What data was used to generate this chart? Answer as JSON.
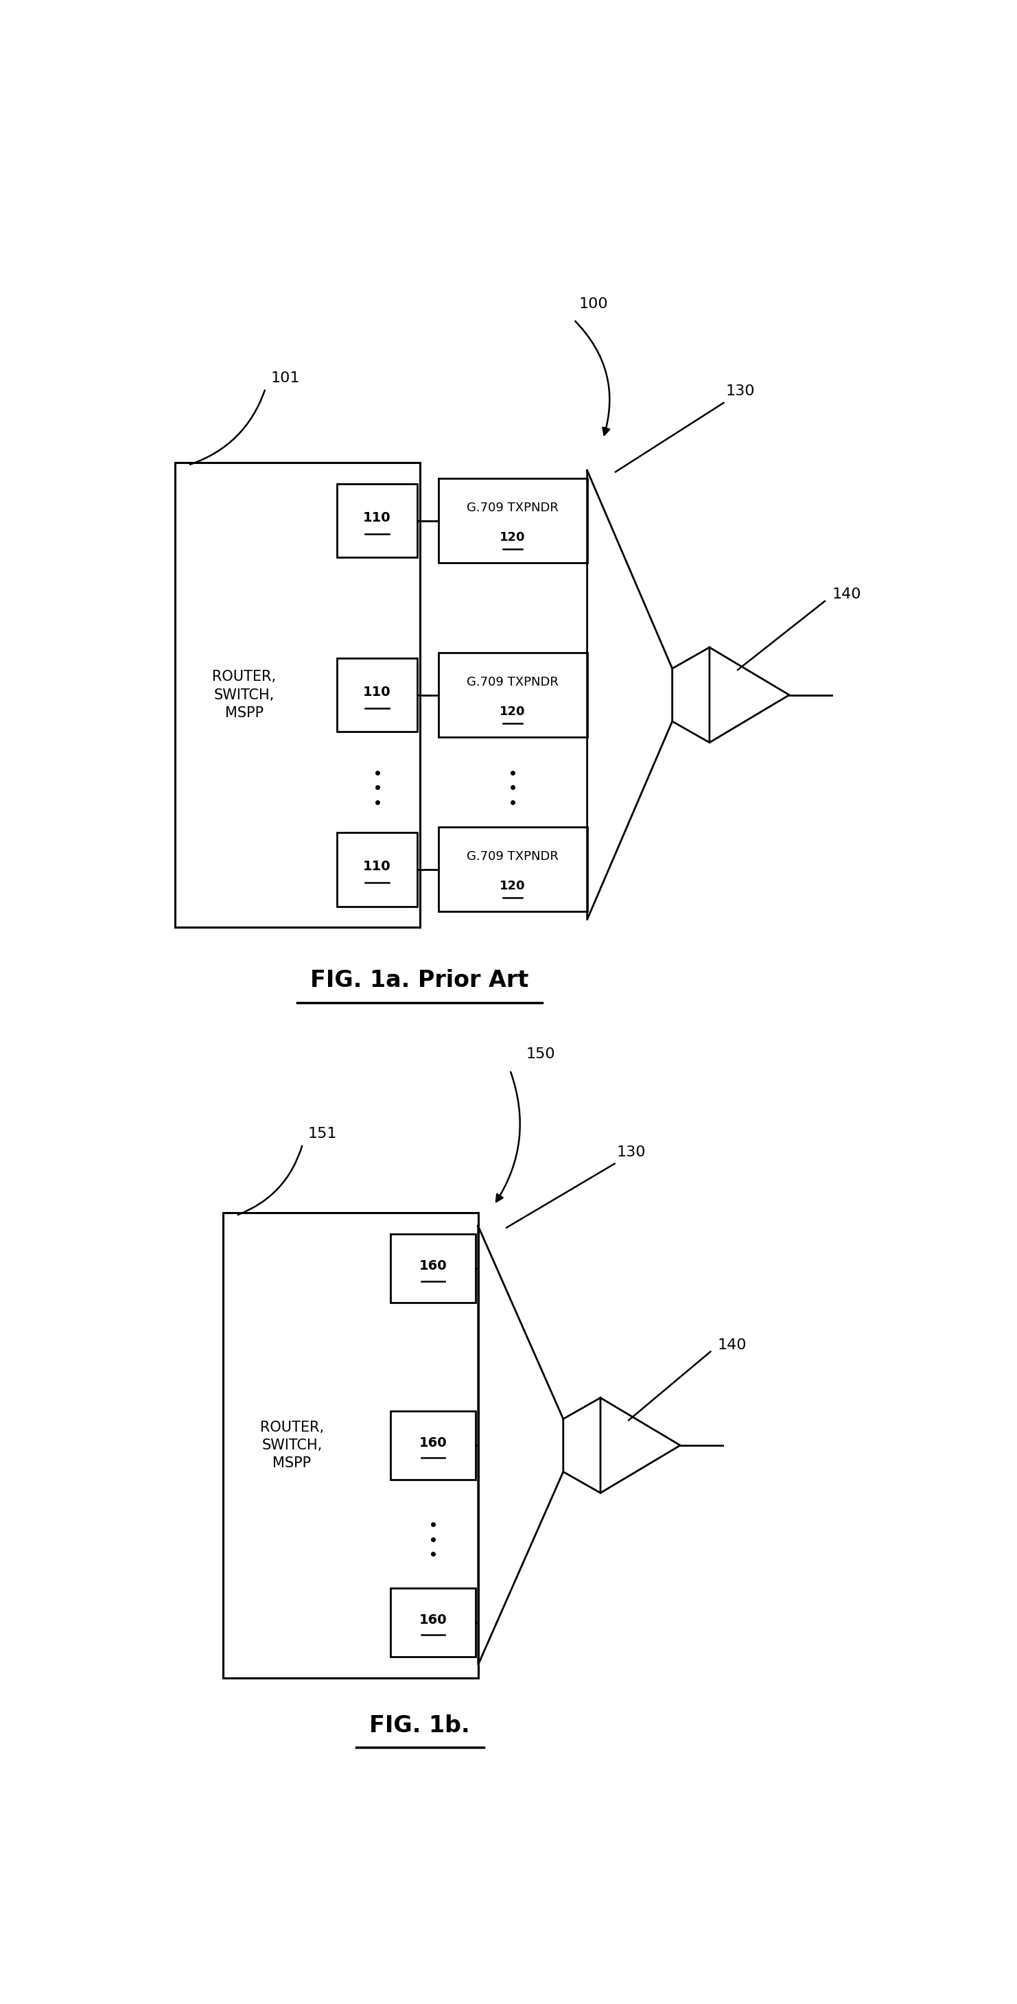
{
  "bg_color": "#ffffff",
  "fig_width": 14.82,
  "fig_height": 29.2,
  "lw": 2.0,
  "fig1a": {
    "label": "FIG. 1a. Prior Art",
    "refs": {
      "100": "100",
      "101": "101",
      "130": "130",
      "140": "140"
    },
    "router_text": "ROUTER,\nSWITCH,\nMSPP",
    "txpndr_line1": "G.709 TXPNDR",
    "txpndr_line2": "120",
    "box110_label": "110"
  },
  "fig1b": {
    "label": "FIG. 1b.",
    "refs": {
      "150": "150",
      "151": "151",
      "130": "130",
      "140": "140"
    },
    "router_text": "ROUTER,\nSWITCH,\nMSPP",
    "box160_label": "160"
  }
}
